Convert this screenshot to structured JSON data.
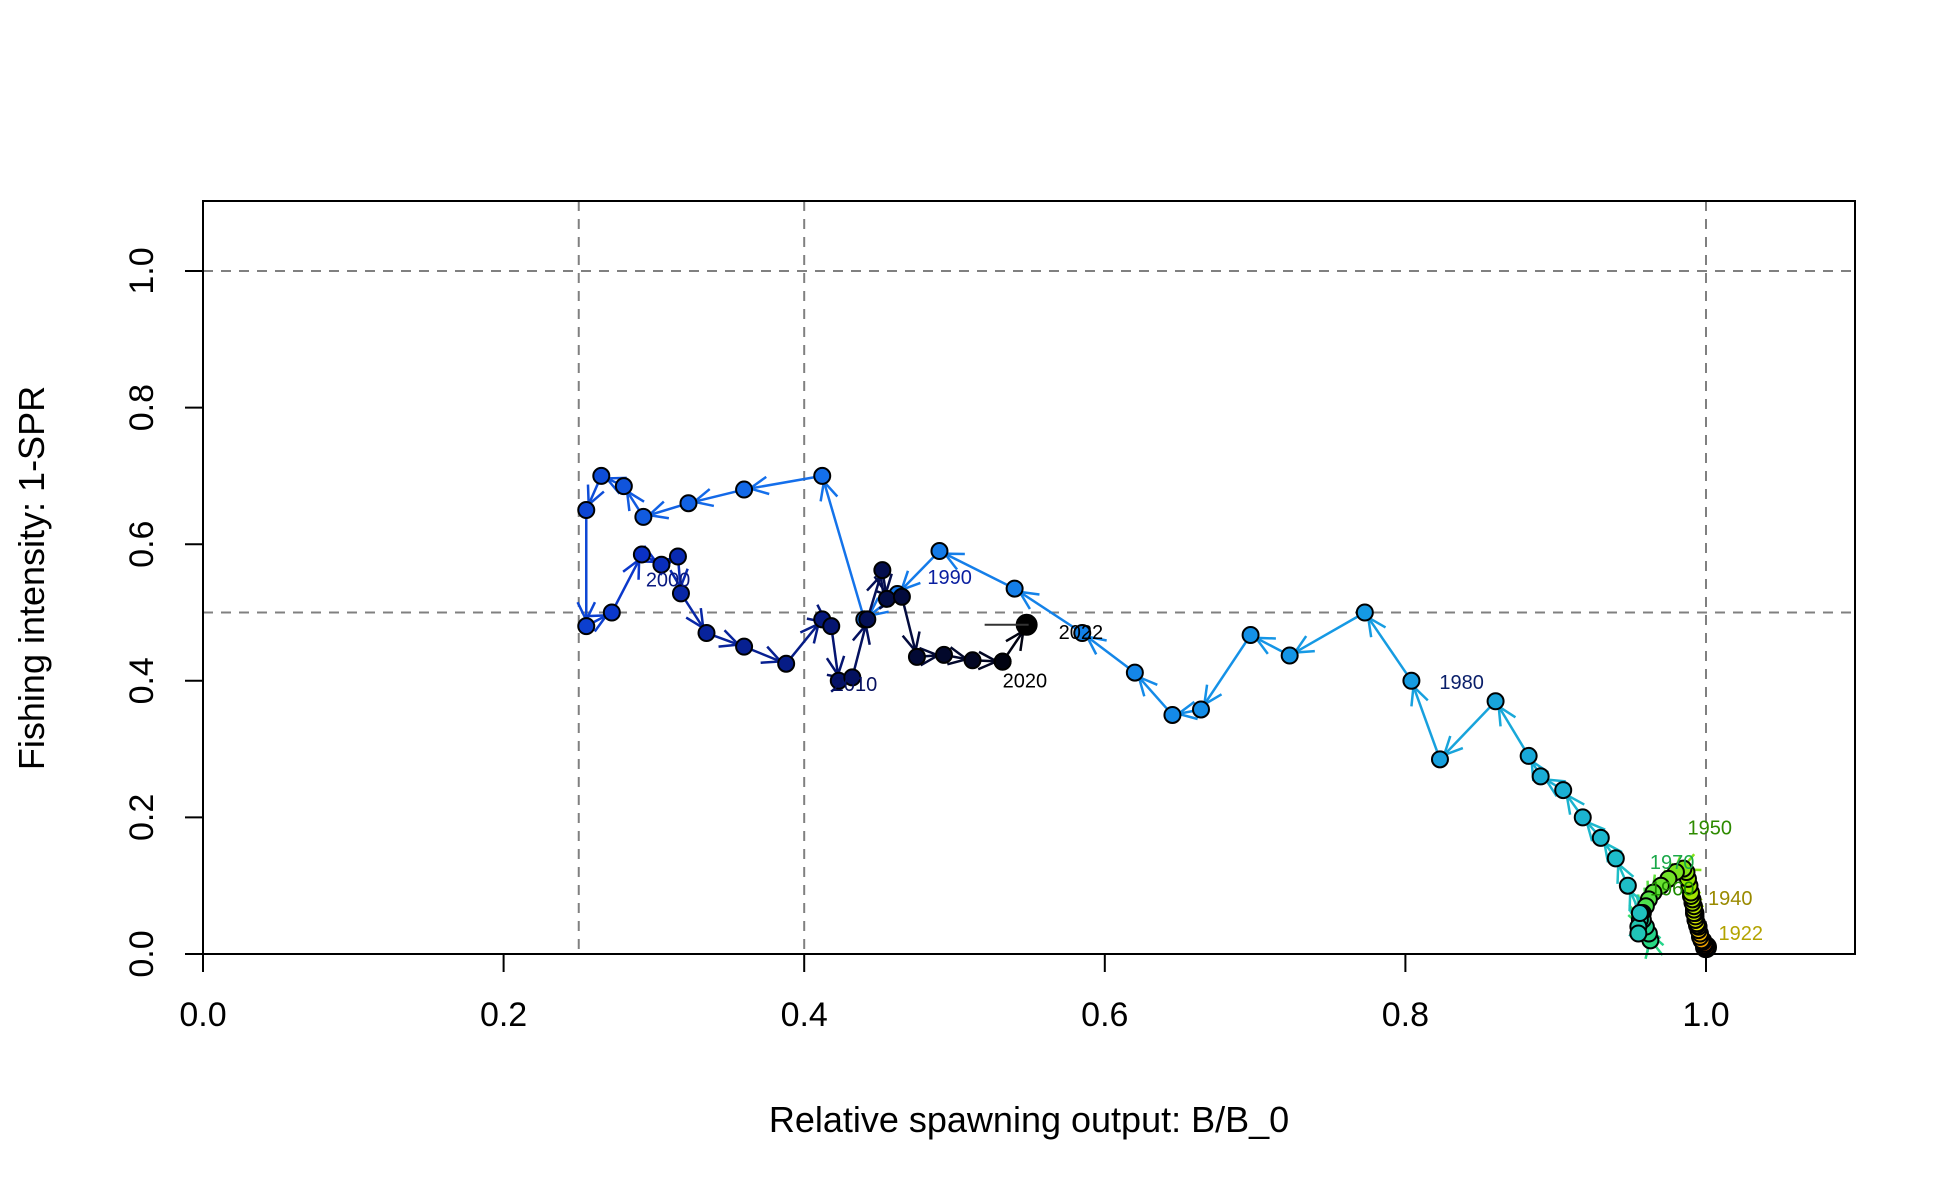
{
  "chart_data": {
    "type": "scatter",
    "title": "",
    "xlabel": "Relative spawning output: B/B_0",
    "ylabel": "Fishing intensity: 1-SPR",
    "xlim": [
      0,
      1.1
    ],
    "ylim": [
      0,
      1.1
    ],
    "x_ticks": [
      "0.0",
      "0.2",
      "0.4",
      "0.6",
      "0.8",
      "1.0"
    ],
    "y_ticks": [
      "0.0",
      "0.2",
      "0.4",
      "0.6",
      "0.8",
      "1.0"
    ],
    "reference_lines": {
      "vertical": [
        0.25,
        0.4,
        1.0
      ],
      "horizontal": [
        0.5,
        1.0
      ]
    },
    "grid": false,
    "legend": "none",
    "series": [
      {
        "years": [
          1916,
          1917,
          1918,
          1919,
          1920,
          1921,
          1922,
          1923,
          1924,
          1925,
          1926,
          1927,
          1928,
          1929,
          1930,
          1931,
          1932,
          1933,
          1934,
          1935,
          1936,
          1937,
          1938,
          1939,
          1940,
          1941,
          1942,
          1943,
          1944,
          1945,
          1946,
          1947,
          1948,
          1949,
          1950,
          1951,
          1952,
          1953,
          1954,
          1955,
          1956,
          1957,
          1958,
          1959,
          1960,
          1961,
          1962,
          1963,
          1964,
          1965,
          1966,
          1967,
          1968,
          1969,
          1970,
          1971,
          1972,
          1973,
          1974,
          1975,
          1976,
          1977,
          1978,
          1979,
          1980,
          1981,
          1982,
          1983,
          1984,
          1985,
          1986,
          1987,
          1988,
          1989,
          1990,
          1991,
          1992,
          1993,
          1994,
          1995,
          1996,
          1997,
          1998,
          1999,
          2000,
          2001,
          2002,
          2003,
          2004,
          2005,
          2006,
          2007,
          2008,
          2009,
          2010,
          2011,
          2012,
          2013,
          2014,
          2015,
          2016,
          2017,
          2018,
          2019,
          2020,
          2021,
          2022
        ],
        "x": [
          1.0,
          1.0,
          1.0,
          1.0,
          1.0,
          0.999,
          0.999,
          0.999,
          0.998,
          0.998,
          0.998,
          0.997,
          0.997,
          0.996,
          0.996,
          0.995,
          0.995,
          0.995,
          0.994,
          0.994,
          0.993,
          0.993,
          0.993,
          0.993,
          0.992,
          0.992,
          0.992,
          0.991,
          0.991,
          0.99,
          0.99,
          0.989,
          0.988,
          0.987,
          0.985,
          0.98,
          0.975,
          0.97,
          0.965,
          0.962,
          0.96,
          0.958,
          0.957,
          0.958,
          0.96,
          0.962,
          0.963,
          0.962,
          0.96,
          0.958,
          0.957,
          0.956,
          0.955,
          0.955,
          0.956,
          0.948,
          0.94,
          0.93,
          0.918,
          0.905,
          0.89,
          0.882,
          0.86,
          0.823,
          0.804,
          0.773,
          0.723,
          0.697,
          0.664,
          0.645,
          0.62,
          0.585,
          0.54,
          0.49,
          0.462,
          0.44,
          0.412,
          0.36,
          0.323,
          0.293,
          0.28,
          0.265,
          0.255,
          0.255,
          0.272,
          0.292,
          0.305,
          0.316,
          0.318,
          0.335,
          0.36,
          0.388,
          0.412,
          0.418,
          0.423,
          0.432,
          0.442,
          0.452,
          0.455,
          0.465,
          0.475,
          0.493,
          0.512,
          0.532,
          0.532,
          0.548,
          0.548
        ],
        "y": [
          0.01,
          0.01,
          0.01,
          0.01,
          0.01,
          0.012,
          0.015,
          0.015,
          0.018,
          0.02,
          0.02,
          0.022,
          0.02,
          0.025,
          0.03,
          0.035,
          0.04,
          0.04,
          0.042,
          0.045,
          0.05,
          0.05,
          0.055,
          0.06,
          0.06,
          0.065,
          0.07,
          0.075,
          0.08,
          0.085,
          0.09,
          0.1,
          0.11,
          0.12,
          0.125,
          0.12,
          0.11,
          0.1,
          0.09,
          0.08,
          0.07,
          0.06,
          0.05,
          0.04,
          0.03,
          0.025,
          0.02,
          0.03,
          0.04,
          0.05,
          0.06,
          0.05,
          0.04,
          0.03,
          0.06,
          0.1,
          0.14,
          0.17,
          0.2,
          0.24,
          0.26,
          0.29,
          0.37,
          0.285,
          0.4,
          0.5,
          0.437,
          0.467,
          0.358,
          0.35,
          0.412,
          0.47,
          0.535,
          0.59,
          0.527,
          0.49,
          0.7,
          0.68,
          0.66,
          0.64,
          0.685,
          0.7,
          0.65,
          0.48,
          0.5,
          0.585,
          0.57,
          0.582,
          0.528,
          0.47,
          0.45,
          0.425,
          0.49,
          0.48,
          0.4,
          0.405,
          0.49,
          0.562,
          0.52,
          0.523,
          0.435,
          0.438,
          0.43,
          0.428,
          0.428,
          0.48,
          0.482
        ]
      }
    ],
    "year_labels": [
      {
        "year": 1940,
        "text": "1940",
        "color": "#9a8a00"
      },
      {
        "year": 1922,
        "text": "1922",
        "color": "#b3a300"
      },
      {
        "year": 1950,
        "text": "1950",
        "color": "#2e8b00"
      },
      {
        "year": 1960,
        "text": "1960",
        "color": "#1d8a00"
      },
      {
        "year": 1970,
        "text": "1970",
        "color": "#1ba84a"
      },
      {
        "year": 1980,
        "text": "1980",
        "color": "#0a1f6a"
      },
      {
        "year": 1990,
        "text": "1990",
        "color": "#0a1fa0"
      },
      {
        "year": 2000,
        "text": "2000",
        "color": "#0a1a80"
      },
      {
        "year": 2010,
        "text": "2010",
        "color": "#061060"
      },
      {
        "year": 2020,
        "text": "2020",
        "color": "#000000"
      },
      {
        "year": 2022,
        "text": "2022",
        "color": "#000000"
      }
    ],
    "final_point_color": "#000000",
    "start_point_color": "#ff2a00"
  }
}
